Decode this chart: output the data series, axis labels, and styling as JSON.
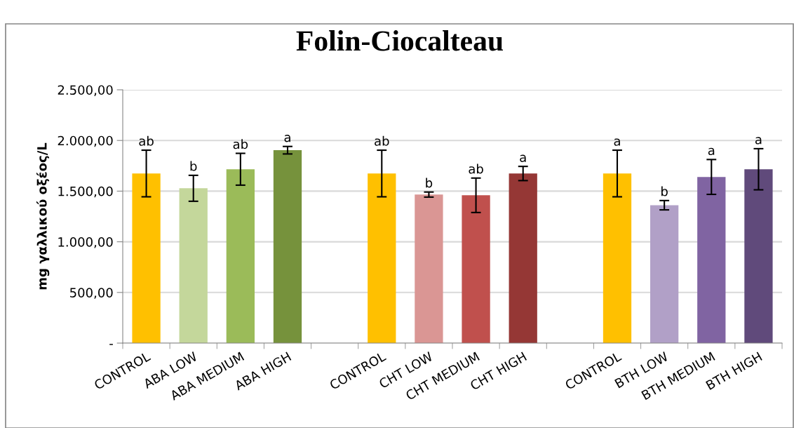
{
  "chart_data": {
    "type": "bar",
    "title": "Folin-Ciocalteau",
    "ylabel": "mg γαλλικού οξέος/L",
    "categories": [
      "CONTROL",
      "ABA LOW",
      "ABA MEDIUM",
      "ABA HIGH",
      null,
      "CONTROL",
      "CHT LOW",
      "CHT MEDIUM",
      "CHT HIGH",
      null,
      "CONTROL",
      "BTH LOW",
      "BTH MEDIUM",
      "BTH HIGH"
    ],
    "values": [
      1674,
      1528,
      1716,
      1904,
      null,
      1674,
      1466,
      1459,
      1674,
      null,
      1674,
      1361,
      1640,
      1716
    ],
    "errors": [
      230,
      128,
      157,
      37,
      null,
      230,
      25,
      170,
      70,
      null,
      230,
      46,
      172,
      203
    ],
    "colors": [
      "#ffc000",
      "#c4d79b",
      "#9bbb59",
      "#76923c",
      null,
      "#ffc000",
      "#da9694",
      "#c0504d",
      "#953735",
      null,
      "#ffc000",
      "#b1a0c7",
      "#8064a2",
      "#604a7b"
    ],
    "value_labels": [
      "ab",
      "b",
      "ab",
      "a",
      null,
      "ab",
      "b",
      "ab",
      "a",
      null,
      "a",
      "b",
      "a",
      "a"
    ],
    "ylim": [
      0,
      2500
    ],
    "yticks": [
      {
        "value": 0,
        "label": "-"
      },
      {
        "value": 500,
        "label": "500,00"
      },
      {
        "value": 1000,
        "label": "1.000,00"
      },
      {
        "value": 1500,
        "label": "1.500,00"
      },
      {
        "value": 2000,
        "label": "2.000,00"
      },
      {
        "value": 2500,
        "label": "2.500,00"
      }
    ],
    "grid": "y"
  }
}
